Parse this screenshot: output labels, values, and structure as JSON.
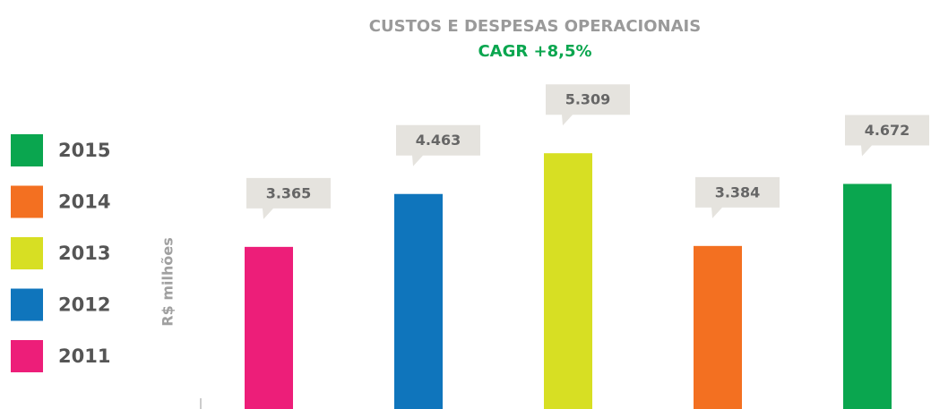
{
  "chart_data": {
    "type": "bar",
    "title": "CUSTOS E DESPESAS OPERACIONAIS",
    "subtitle": "CAGR +8,5%",
    "y_label": "R$ milhões",
    "categories": [
      "2011",
      "2012",
      "2013",
      "2014",
      "2015"
    ],
    "values": [
      3365,
      4463,
      5309,
      3384,
      4672
    ],
    "value_labels": [
      "3.365",
      "4.463",
      "5.309",
      "3.384",
      "4.672"
    ],
    "colors": [
      "#ed1e79",
      "#0f75bc",
      "#d7df23",
      "#f37021",
      "#0aa64f"
    ],
    "ylim": [
      0,
      6000
    ],
    "legend": "left"
  }
}
